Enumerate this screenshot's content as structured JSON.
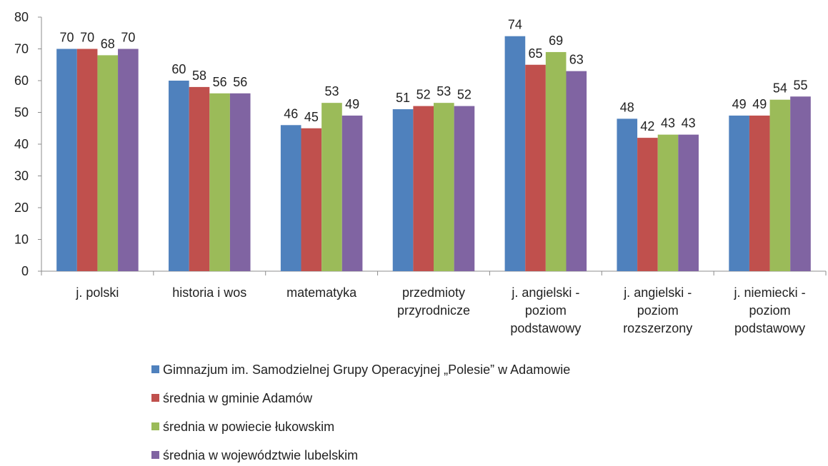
{
  "chart_data": {
    "type": "bar",
    "categories": [
      "j. polski",
      "historia i wos",
      "matematyka",
      "przedmioty\nprzyrodnicze",
      "j. angielski -\npoziom\npodstawowy",
      "j. angielski -\npoziom\nrozszerzony",
      "j. niemiecki -\npoziom\npodstawowy"
    ],
    "series": [
      {
        "name": "Gimnazjum im. Samodzielnej Grupy Operacyjnej „Polesie” w Adamowie",
        "color": "#4f81bd",
        "values": [
          70,
          60,
          46,
          51,
          74,
          48,
          49
        ]
      },
      {
        "name": "średnia w gminie Adamów",
        "color": "#c0504d",
        "values": [
          70,
          58,
          45,
          52,
          65,
          42,
          49
        ]
      },
      {
        "name": "średnia w powiecie łukowskim",
        "color": "#9bbb59",
        "values": [
          68,
          56,
          53,
          53,
          69,
          43,
          54
        ]
      },
      {
        "name": "średnia w województwie lubelskim",
        "color": "#8064a2",
        "values": [
          70,
          56,
          49,
          52,
          63,
          43,
          55
        ]
      }
    ],
    "ylim": [
      0,
      80
    ],
    "yticks": [
      0,
      10,
      20,
      30,
      40,
      50,
      60,
      70,
      80
    ],
    "legend": "bottom"
  }
}
